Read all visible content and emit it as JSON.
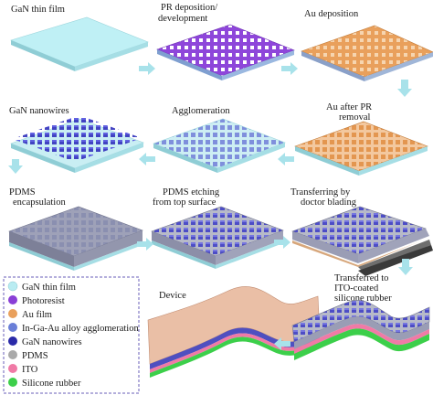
{
  "steps": {
    "gan_thin_film": "GaN thin film",
    "pr_deposition": [
      "PR deposition/",
      "development"
    ],
    "au_deposition": "Au deposition",
    "gan_nanowires": "GaN nanowires",
    "agglomeration": "Agglomeration",
    "au_after_pr_removal": [
      "Au after PR",
      "removal"
    ],
    "pdms_encapsulation": [
      "PDMS",
      "encapsulation"
    ],
    "pdms_etching": [
      "PDMS etching",
      "from top surface"
    ],
    "transferring_doctor_blading": [
      "Transferring by",
      "doctor blading"
    ],
    "transferred_to_ito": [
      "Transferred to",
      "ITO-coated",
      "silicone rubber"
    ],
    "device": "Device"
  },
  "legend": [
    {
      "label": "GaN thin film",
      "color": "#b9ecf2"
    },
    {
      "label": "Photoresist",
      "color": "#8a3fd6"
    },
    {
      "label": "Au film",
      "color": "#e9a05c"
    },
    {
      "label": "In-Ga-Au alloy agglomeration",
      "color": "#6a7fd8"
    },
    {
      "label": "GaN nanowires",
      "color": "#2a2aa8"
    },
    {
      "label": "PDMS",
      "color": "#a9a9a9"
    },
    {
      "label": "ITO",
      "color": "#f07aa6"
    },
    {
      "label": "Silicone rubber",
      "color": "#3ccf4a"
    }
  ],
  "colors": {
    "arrow": "#a8e2ea",
    "gan_film": "#bff0f5",
    "photoresist": "#8a3fd6",
    "au_film": "#e9a05c",
    "nanowire": "#3232b4",
    "pdms": "#9c9fb4",
    "ito": "#f07aa6",
    "silicone": "#3ccf4a",
    "device_top": "#e8b49a"
  }
}
